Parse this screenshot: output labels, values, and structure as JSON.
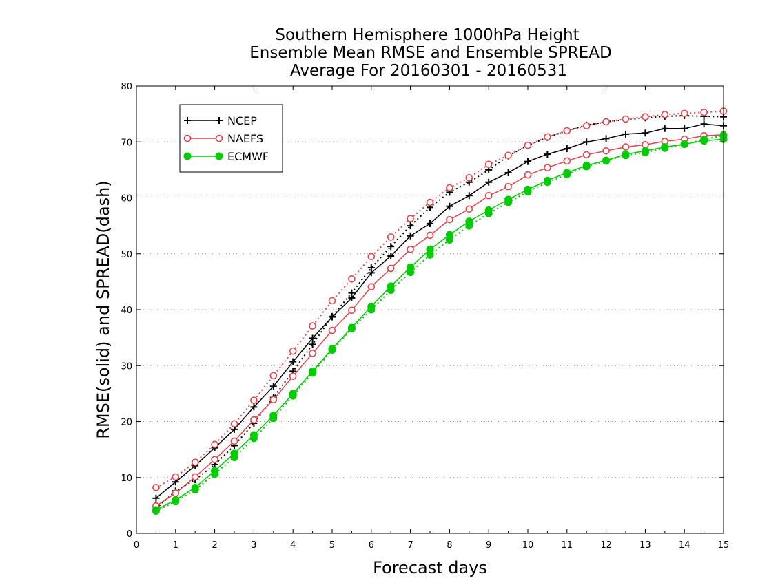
{
  "chart_data": {
    "type": "line",
    "title": [
      "Southern Hemisphere 1000hPa Height",
      "Ensemble Mean RMSE and Ensemble SPREAD",
      "Average For 20160301 - 20160531"
    ],
    "xlabel": "Forecast days",
    "ylabel": "RMSE(solid) and SPREAD(dash)",
    "xlim": [
      0,
      15
    ],
    "ylim": [
      0,
      80
    ],
    "xticks": [
      0,
      1,
      2,
      3,
      4,
      5,
      6,
      7,
      8,
      9,
      10,
      11,
      12,
      13,
      14,
      15
    ],
    "yticks": [
      0,
      10,
      20,
      30,
      40,
      50,
      60,
      70,
      80
    ],
    "grid": "horizontal dotted",
    "legend_position": "top-left",
    "x": [
      0.5,
      1,
      1.5,
      2,
      2.5,
      3,
      3.5,
      4,
      4.5,
      5,
      5.5,
      6,
      6.5,
      7,
      7.5,
      8,
      8.5,
      9,
      9.5,
      10,
      10.5,
      11,
      11.5,
      12,
      12.5,
      13,
      13.5,
      14,
      14.5,
      15
    ],
    "series": [
      {
        "name": "NCEP",
        "color": "#000000",
        "marker": "plus",
        "rmse": [
          6.3,
          9.2,
          12.1,
          15.3,
          18.6,
          22.6,
          26.3,
          30.7,
          34.9,
          38.7,
          42.1,
          46.6,
          49.6,
          53.2,
          55.4,
          58.5,
          60.4,
          62.8,
          64.5,
          66.5,
          67.8,
          68.8,
          70.0,
          70.6,
          71.4,
          71.6,
          72.4,
          72.4,
          73.2,
          72.9
        ],
        "spread": [
          4.4,
          7.6,
          9.6,
          12.3,
          15.7,
          19.7,
          24.3,
          29.0,
          33.8,
          38.8,
          43.0,
          47.5,
          51.3,
          55.0,
          58.3,
          61.0,
          62.8,
          65.0,
          67.5,
          69.4,
          70.8,
          72.0,
          73.0,
          73.6,
          74.0,
          74.3,
          74.6,
          74.7,
          74.6,
          74.5
        ]
      },
      {
        "name": "NAEFS",
        "color": "#e8434a",
        "marker": "open-circle",
        "rmse": [
          4.9,
          7.2,
          10.1,
          13.2,
          16.5,
          20.3,
          23.9,
          28.1,
          32.2,
          36.3,
          39.9,
          44.1,
          47.4,
          50.8,
          53.3,
          56.1,
          58.0,
          60.4,
          62.0,
          64.1,
          65.4,
          66.6,
          67.7,
          68.4,
          69.1,
          69.5,
          70.1,
          70.5,
          71.1,
          71.3
        ],
        "spread": [
          8.2,
          10.1,
          12.7,
          15.9,
          19.6,
          23.8,
          28.2,
          32.6,
          37.1,
          41.6,
          45.5,
          49.5,
          53.0,
          56.3,
          59.2,
          61.8,
          63.6,
          66.0,
          67.6,
          69.4,
          70.9,
          72.0,
          72.9,
          73.6,
          74.1,
          74.5,
          74.9,
          75.1,
          75.3,
          75.5
        ]
      },
      {
        "name": "ECMWF",
        "color": "#00cc00",
        "marker": "filled-circle",
        "rmse": [
          4.2,
          6.0,
          8.2,
          11.2,
          14.3,
          17.6,
          21.1,
          25.0,
          29.0,
          33.0,
          36.8,
          40.6,
          44.2,
          47.6,
          50.8,
          53.4,
          55.8,
          57.8,
          59.7,
          61.5,
          63.1,
          64.5,
          65.8,
          66.7,
          67.8,
          68.4,
          69.1,
          69.6,
          70.2,
          70.5
        ],
        "spread": [
          4.0,
          5.7,
          7.8,
          10.6,
          13.6,
          17.0,
          20.6,
          24.6,
          28.7,
          32.8,
          36.6,
          40.0,
          43.5,
          46.7,
          49.8,
          52.5,
          55.0,
          57.2,
          59.2,
          61.1,
          62.8,
          64.2,
          65.6,
          66.6,
          67.6,
          68.1,
          68.9,
          69.6,
          70.4,
          71.2
        ]
      }
    ]
  }
}
